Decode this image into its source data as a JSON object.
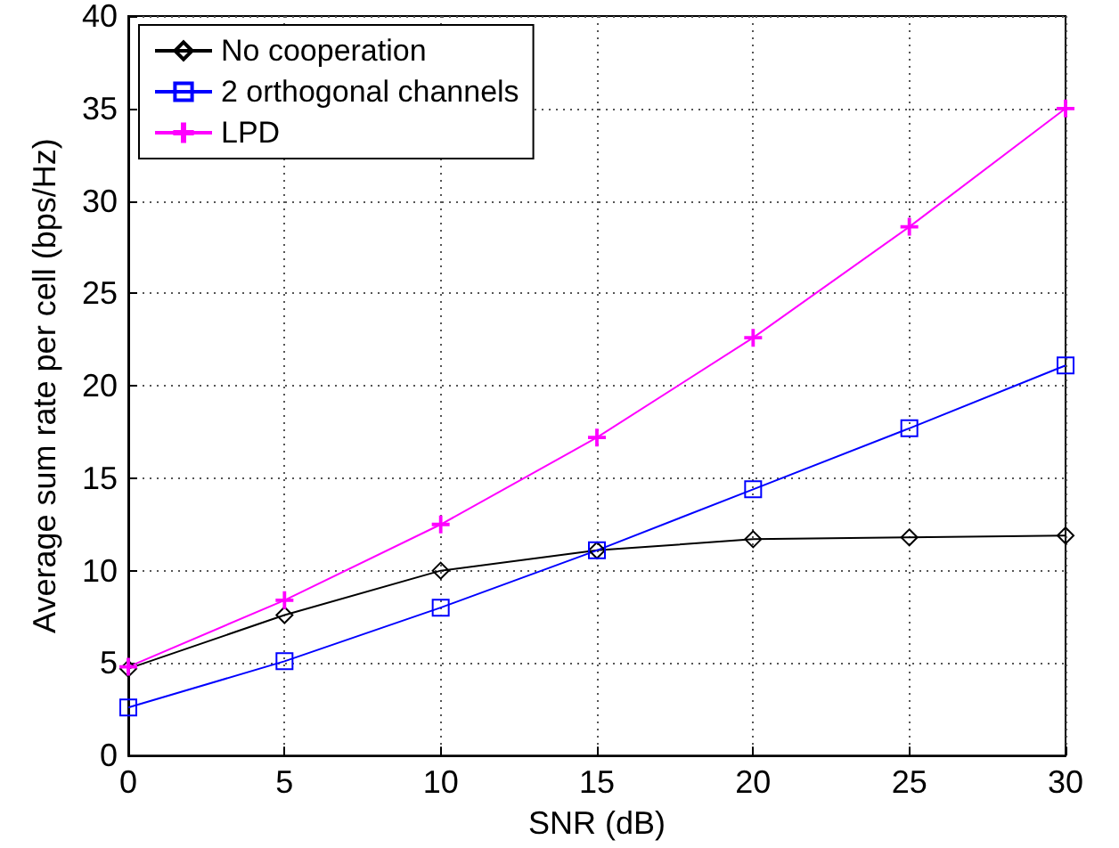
{
  "chart_data": {
    "type": "line",
    "xlabel": "SNR (dB)",
    "ylabel": "Average sum rate per cell (bps/Hz)",
    "x": [
      0,
      5,
      10,
      15,
      20,
      25,
      30
    ],
    "series": [
      {
        "name": "No cooperation",
        "color": "#000000",
        "marker": "diamond",
        "values": [
          4.7,
          7.6,
          10.0,
          11.1,
          11.7,
          11.8,
          11.9
        ]
      },
      {
        "name": "2 orthogonal channels",
        "color": "#0000ff",
        "marker": "square",
        "values": [
          2.6,
          5.1,
          8.0,
          11.1,
          14.4,
          17.7,
          21.1
        ]
      },
      {
        "name": "LPD",
        "color": "#ff00ff",
        "marker": "cross",
        "values": [
          4.8,
          8.4,
          12.5,
          17.2,
          22.6,
          28.6,
          35.0
        ]
      }
    ],
    "xlim": [
      0,
      30
    ],
    "xticks": [
      0,
      5,
      10,
      15,
      20,
      25,
      30
    ],
    "ylim": [
      0,
      40
    ],
    "yticks": [
      0,
      5,
      10,
      15,
      20,
      25,
      30,
      35,
      40
    ],
    "grid": true,
    "legend": "top left",
    "line_style": "solid"
  }
}
